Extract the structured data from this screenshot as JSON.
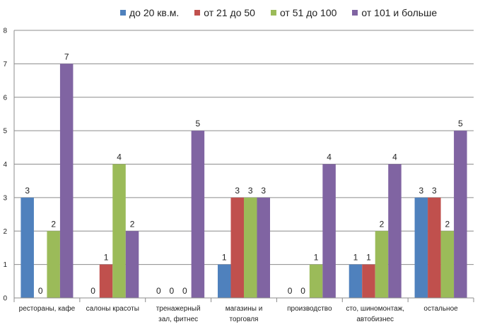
{
  "chart_data": {
    "type": "bar",
    "categories": [
      [
        "рестораны, кафе"
      ],
      [
        "салоны красоты"
      ],
      [
        "тренажерный",
        "зал, фитнес"
      ],
      [
        "магазины и",
        "торговля"
      ],
      [
        "производство"
      ],
      [
        "сто, шиномонтаж,",
        "автобизнес"
      ],
      [
        "остальное"
      ]
    ],
    "series": [
      {
        "name": "до 20 кв.м.",
        "color": "#4f81bd",
        "values": [
          3,
          0,
          0,
          1,
          0,
          1,
          3
        ]
      },
      {
        "name": "от 21 до 50",
        "color": "#c0504d",
        "values": [
          0,
          1,
          0,
          3,
          0,
          1,
          3
        ]
      },
      {
        "name": "от 51 до 100",
        "color": "#9bbb59",
        "values": [
          2,
          4,
          0,
          3,
          1,
          2,
          2
        ]
      },
      {
        "name": "от 101 и больше",
        "color": "#8064a2",
        "values": [
          7,
          2,
          5,
          3,
          4,
          4,
          5
        ]
      }
    ],
    "ylim": [
      0,
      8
    ],
    "yticks": [
      "0",
      "1",
      "2",
      "3",
      "4",
      "5",
      "6",
      "7",
      "8"
    ],
    "grid": true,
    "legend_position": "top"
  }
}
